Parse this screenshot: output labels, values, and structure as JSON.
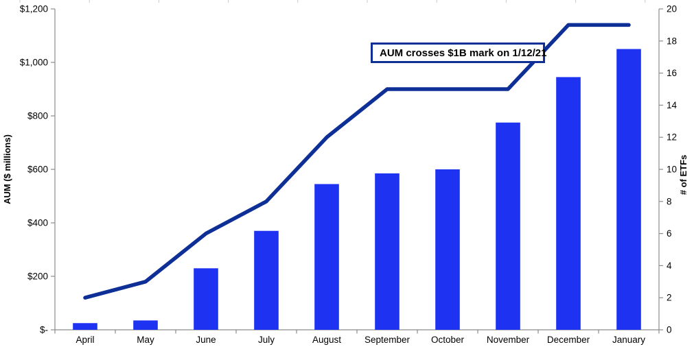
{
  "chart_data": {
    "type": "combo",
    "categories": [
      "April",
      "May",
      "June",
      "July",
      "August",
      "September",
      "October",
      "November",
      "December",
      "January"
    ],
    "series": [
      {
        "name": "AUM ($ millions)",
        "type": "bar",
        "axis": "left",
        "color": "#1E32F2",
        "values": [
          25,
          35,
          230,
          370,
          545,
          585,
          600,
          775,
          945,
          1050
        ]
      },
      {
        "name": "# of ETFs",
        "type": "line",
        "axis": "right",
        "color": "#0D2F96",
        "values": [
          2,
          3,
          6,
          8,
          12,
          15,
          15,
          15,
          19,
          19
        ]
      }
    ],
    "left_axis": {
      "title": "AUM ($ millions)",
      "min": 0,
      "max": 1200,
      "step": 200,
      "tick_labels": [
        "$-",
        "$200",
        "$400",
        "$600",
        "$800",
        "$1,000",
        "$1,200"
      ]
    },
    "right_axis": {
      "title": "# of ETFs",
      "min": 0,
      "max": 20,
      "step": 2,
      "tick_labels": [
        "0",
        "2",
        "4",
        "6",
        "8",
        "10",
        "12",
        "14",
        "16",
        "18",
        "20"
      ]
    },
    "annotation": {
      "text": "AUM crosses $1B mark on 1/12/21",
      "border_color": "#0D2F96"
    },
    "grid": false,
    "legend": "none",
    "axis_line_color": "#8C8C8C",
    "top_edge_tick_color": "#C9C9C9",
    "text_color": "#000000"
  }
}
